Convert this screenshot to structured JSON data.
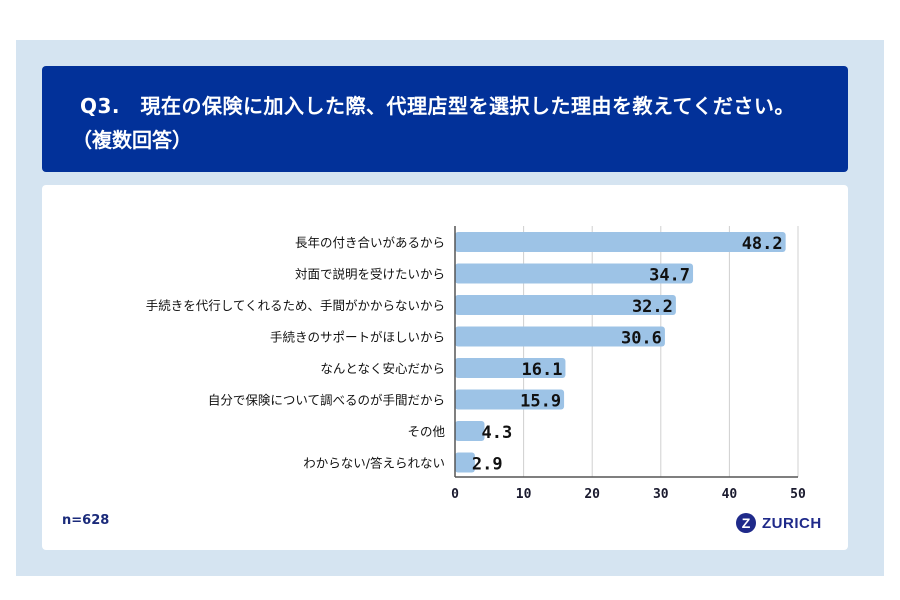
{
  "header": {
    "question": "Q3.　現在の保険に加入した際、代理店型を選択した理由を教えてください。",
    "note": "（複数回答）"
  },
  "footer": {
    "sample": "n=628",
    "brand": "ZURICH"
  },
  "colors": {
    "header_bg": "#023199",
    "bar": "#9dc3e6",
    "frame": "#d5e4f1"
  },
  "chart_data": {
    "type": "bar",
    "orientation": "horizontal",
    "categories": [
      "長年の付き合いがあるから",
      "対面で説明を受けたいから",
      "手続きを代行してくれるため、手間がかからないから",
      "手続きのサポートがほしいから",
      "なんとなく安心だから",
      "自分で保険について調べるのが手間だから",
      "その他",
      "わからない/答えられない"
    ],
    "values": [
      48.2,
      34.7,
      32.2,
      30.6,
      16.1,
      15.9,
      4.3,
      2.9
    ],
    "value_labels": [
      "48.2",
      "34.7",
      "32.2",
      "30.6",
      "16.1",
      "15.9",
      "4.3",
      "2.9"
    ],
    "xlim": [
      0,
      50
    ],
    "xticks": [
      "0",
      "10",
      "20",
      "30",
      "40",
      "50"
    ],
    "grid": true,
    "title": "",
    "xlabel": "",
    "ylabel": ""
  }
}
